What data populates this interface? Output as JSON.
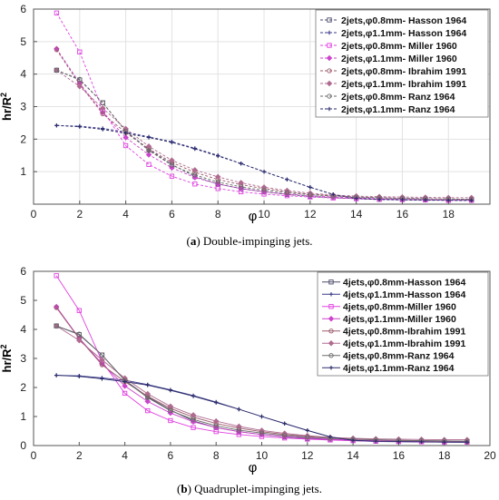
{
  "captions": [
    {
      "letter": "a",
      "text": " Double-impinging jets."
    },
    {
      "letter": "b",
      "text": " Quadruplet-impinging jets."
    }
  ],
  "chart_data": [
    {
      "type": "line",
      "xlabel": "φ",
      "ylabel": "hr/R",
      "ylabel_sup": "2",
      "xlim": [
        0,
        19.8
      ],
      "ylim": [
        0,
        6
      ],
      "xticks": [
        0,
        2,
        4,
        6,
        8,
        10,
        12,
        14,
        16,
        18
      ],
      "yticks": [
        1,
        2,
        3,
        4,
        5,
        6
      ],
      "grid": true,
      "legend_position": "top-right",
      "x": [
        1,
        2,
        3,
        4,
        5,
        6,
        7,
        8,
        9,
        10,
        11,
        12,
        13,
        14,
        15,
        16,
        17,
        18,
        19
      ],
      "series": [
        {
          "name": "2jets,φ0.8mm- Hasson 1964",
          "color": "#4a4a6a",
          "marker": "square",
          "values": [
            4.12,
            3.82,
            3.12,
            2.25,
            1.68,
            1.22,
            0.85,
            0.62,
            0.48,
            0.38,
            0.3,
            0.24,
            0.2,
            0.17,
            0.15,
            0.14,
            0.13,
            0.12,
            0.12
          ]
        },
        {
          "name": "2jets,φ1.1mm- Hasson 1964",
          "color": "#3a3a8a",
          "marker": "plus",
          "values": [
            2.42,
            2.4,
            2.33,
            2.22,
            2.07,
            1.92,
            1.72,
            1.5,
            1.25,
            1.0,
            0.76,
            0.52,
            0.3,
            0.17,
            0.14,
            0.13,
            0.12,
            0.12,
            0.11
          ]
        },
        {
          "name": "2jets,φ0.8mm- Miller 1960",
          "color": "#e040e0",
          "marker": "square",
          "values": [
            5.88,
            4.68,
            2.9,
            1.8,
            1.22,
            0.86,
            0.62,
            0.48,
            0.38,
            0.31,
            0.26,
            0.22,
            0.19,
            0.17,
            0.15,
            0.14,
            0.13,
            0.12,
            0.12
          ]
        },
        {
          "name": "2jets,φ1.1mm- Miller 1960",
          "color": "#cc44cc",
          "marker": "diamond",
          "values": [
            4.78,
            3.72,
            2.82,
            2.05,
            1.52,
            1.12,
            0.82,
            0.62,
            0.48,
            0.38,
            0.31,
            0.26,
            0.22,
            0.19,
            0.17,
            0.15,
            0.14,
            0.13,
            0.12
          ]
        },
        {
          "name": "2jets,φ0.8mm- Ibrahim 1991",
          "color": "#9a5a6a",
          "marker": "circle",
          "values": [
            4.75,
            3.68,
            2.78,
            2.2,
            1.7,
            1.28,
            0.98,
            0.76,
            0.6,
            0.48,
            0.38,
            0.31,
            0.26,
            0.22,
            0.2,
            0.18,
            0.17,
            0.16,
            0.15
          ]
        },
        {
          "name": "2jets,φ1.1mm- Ibrahim 1991",
          "color": "#b06a90",
          "marker": "diamond",
          "values": [
            4.12,
            3.62,
            2.95,
            2.32,
            1.78,
            1.35,
            1.05,
            0.84,
            0.66,
            0.52,
            0.42,
            0.34,
            0.28,
            0.25,
            0.23,
            0.22,
            0.21,
            0.2,
            0.2
          ]
        },
        {
          "name": "2jets,φ0.8mm- Ranz 1964",
          "color": "#6a6a6a",
          "marker": "circle",
          "values": [
            4.12,
            3.84,
            3.12,
            2.24,
            1.65,
            1.2,
            0.9,
            0.68,
            0.53,
            0.43,
            0.35,
            0.29,
            0.25,
            0.22,
            0.2,
            0.18,
            0.17,
            0.16,
            0.15
          ]
        },
        {
          "name": "2jets,φ1.1mm- Ranz 1964",
          "color": "#2a2a6a",
          "marker": "plus",
          "values": [
            2.42,
            2.38,
            2.3,
            2.18,
            2.05,
            1.9,
            1.7,
            1.48,
            1.25,
            1.0,
            0.76,
            0.52,
            0.3,
            0.18,
            0.15,
            0.14,
            0.13,
            0.12,
            0.12
          ]
        }
      ]
    },
    {
      "type": "line",
      "xlabel": "φ",
      "ylabel": "hr/R",
      "ylabel_sup": "2",
      "xlim": [
        0,
        20
      ],
      "ylim": [
        0,
        6
      ],
      "xticks": [
        0,
        2,
        4,
        6,
        8,
        10,
        12,
        14,
        16,
        18,
        20
      ],
      "yticks": [
        0,
        1,
        2,
        3,
        4,
        5,
        6
      ],
      "grid": false,
      "legend_position": "top-right",
      "x": [
        1,
        2,
        3,
        4,
        5,
        6,
        7,
        8,
        9,
        10,
        11,
        12,
        13,
        14,
        15,
        16,
        17,
        18,
        19
      ],
      "series": [
        {
          "name": "4jets,φ0.8mm-Hasson 1964",
          "color": "#4a4a6a",
          "marker": "square",
          "values": [
            4.12,
            3.82,
            3.12,
            2.25,
            1.68,
            1.22,
            0.85,
            0.62,
            0.48,
            0.38,
            0.3,
            0.24,
            0.2,
            0.17,
            0.15,
            0.14,
            0.13,
            0.12,
            0.12
          ]
        },
        {
          "name": "4jets,φ1.1mm-Hasson 1964",
          "color": "#3a3a8a",
          "marker": "plus",
          "values": [
            2.42,
            2.4,
            2.33,
            2.25,
            2.1,
            1.92,
            1.72,
            1.5,
            1.25,
            1.0,
            0.76,
            0.52,
            0.3,
            0.17,
            0.14,
            0.13,
            0.12,
            0.12,
            0.11
          ]
        },
        {
          "name": "4jets,φ0.8mm-Miller 1960",
          "color": "#e040e0",
          "marker": "square",
          "values": [
            5.85,
            4.65,
            2.9,
            1.8,
            1.2,
            0.86,
            0.62,
            0.48,
            0.38,
            0.31,
            0.26,
            0.22,
            0.19,
            0.17,
            0.15,
            0.14,
            0.13,
            0.12,
            0.12
          ]
        },
        {
          "name": "4jets,φ1.1mm-Miller 1960",
          "color": "#cc44cc",
          "marker": "diamond",
          "values": [
            4.78,
            3.7,
            2.82,
            2.05,
            1.52,
            1.12,
            0.82,
            0.62,
            0.48,
            0.38,
            0.31,
            0.26,
            0.22,
            0.19,
            0.17,
            0.15,
            0.14,
            0.13,
            0.12
          ]
        },
        {
          "name": "4jets,φ0.8mm-Ibrahim 1991",
          "color": "#9a5a6a",
          "marker": "circle",
          "values": [
            4.75,
            3.68,
            2.78,
            2.2,
            1.7,
            1.28,
            0.98,
            0.76,
            0.6,
            0.48,
            0.38,
            0.31,
            0.26,
            0.22,
            0.2,
            0.18,
            0.17,
            0.16,
            0.15
          ]
        },
        {
          "name": "4jets,φ1.1mm-Ibrahim 1991",
          "color": "#b06a90",
          "marker": "diamond",
          "values": [
            4.12,
            3.62,
            2.95,
            2.32,
            1.78,
            1.35,
            1.05,
            0.84,
            0.66,
            0.52,
            0.42,
            0.34,
            0.28,
            0.25,
            0.23,
            0.22,
            0.21,
            0.2,
            0.2
          ]
        },
        {
          "name": "4jets,φ0.8mm-Ranz 1964",
          "color": "#6a6a6a",
          "marker": "circle",
          "values": [
            4.12,
            3.84,
            3.12,
            2.24,
            1.65,
            1.2,
            0.9,
            0.68,
            0.53,
            0.43,
            0.35,
            0.29,
            0.25,
            0.22,
            0.2,
            0.18,
            0.17,
            0.16,
            0.15
          ]
        },
        {
          "name": "4jets,φ1.1mm-Ranz 1964",
          "color": "#2a2a6a",
          "marker": "plus",
          "values": [
            2.42,
            2.38,
            2.3,
            2.2,
            2.08,
            1.9,
            1.7,
            1.48,
            1.25,
            1.0,
            0.76,
            0.52,
            0.3,
            0.18,
            0.15,
            0.14,
            0.13,
            0.12,
            0.12
          ]
        }
      ]
    }
  ]
}
